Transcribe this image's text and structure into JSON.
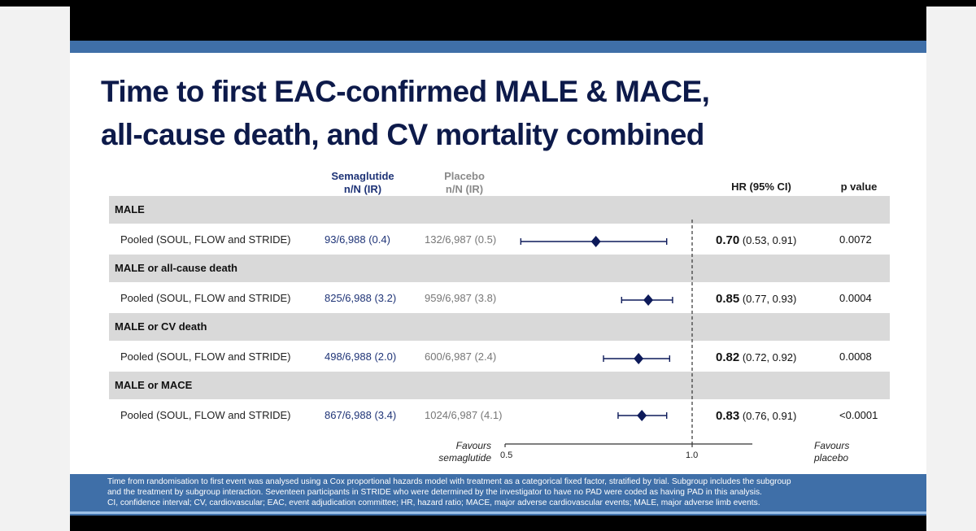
{
  "title_line1": "Time to first EAC-confirmed MALE & MACE,",
  "title_line2": "all-cause death, and CV mortality combined",
  "headers": {
    "semaglutide": "Semaglutide",
    "semaglutide_sub": "n/N (IR)",
    "placebo": "Placebo",
    "placebo_sub": "n/N (IR)",
    "hr": "HR (95% CI)",
    "p": "p value"
  },
  "groups": [
    {
      "name": "MALE",
      "label": "Pooled (SOUL, FLOW and STRIDE)",
      "sema": "93/6,988 (0.4)",
      "placebo": "132/6,987 (0.5)",
      "hr": "0.70",
      "ci": "(0.53, 0.91)",
      "p": "0.0072"
    },
    {
      "name": "MALE or all-cause death",
      "label": "Pooled (SOUL, FLOW and STRIDE)",
      "sema": "825/6,988 (3.2)",
      "placebo": "959/6,987 (3.8)",
      "hr": "0.85",
      "ci": "(0.77, 0.93)",
      "p": "0.0004"
    },
    {
      "name": "MALE or CV death",
      "label": "Pooled (SOUL, FLOW and STRIDE)",
      "sema": "498/6,988 (2.0)",
      "placebo": "600/6,987 (2.4)",
      "hr": "0.82",
      "ci": "(0.72, 0.92)",
      "p": "0.0008"
    },
    {
      "name": "MALE or MACE",
      "label": "Pooled (SOUL, FLOW and STRIDE)",
      "sema": "867/6,988 (3.4)",
      "placebo": "1024/6,987 (4.1)",
      "hr": "0.83",
      "ci": "(0.76, 0.91)",
      "p": "<0.0001"
    }
  ],
  "axis": {
    "favours_left_1": "Favours",
    "favours_left_2": "semaglutide",
    "favours_right_1": "Favours",
    "favours_right_2": "placebo",
    "tick_min": "0.5",
    "tick_ref": "1.0"
  },
  "footer": {
    "line1": "Time from randomisation to first event was analysed using a Cox proportional hazards model with treatment as a categorical fixed factor, stratified by trial. Subgroup includes the subgroup",
    "line2": "and the treatment by subgroup interaction. Seventeen participants in STRIDE who were determined by the investigator to have no PAD were coded as having PAD in this analysis.",
    "line3": "CI, confidence interval; CV, cardiovascular; EAC, event adjudication committee; HR, hazard ratio; MACE, major adverse cardiovascular events; MALE, major adverse limb events."
  },
  "chart_data": {
    "type": "forest",
    "scale": "log",
    "xlim": [
      0.5,
      1.25
    ],
    "reference_line": 1.0,
    "categories": [
      "MALE",
      "MALE or all-cause death",
      "MALE or CV death",
      "MALE or MACE"
    ],
    "series": [
      {
        "values": [
          0.7,
          0.85,
          0.82,
          0.83
        ],
        "lower": [
          0.53,
          0.77,
          0.72,
          0.76
        ],
        "upper": [
          0.91,
          0.93,
          0.92,
          0.91
        ]
      }
    ],
    "colors": {
      "marker": "#0d1a5a",
      "text_semaglutide": "#1f3477",
      "text_placebo": "#777777"
    }
  }
}
